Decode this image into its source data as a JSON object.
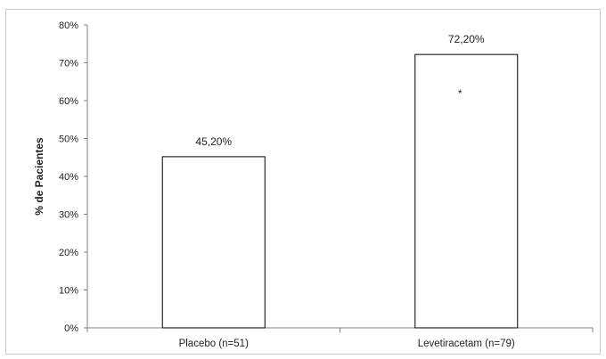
{
  "chart_data": {
    "type": "bar",
    "title": "",
    "xlabel": "",
    "ylabel": "% de Pacientes",
    "ylim": [
      0,
      80
    ],
    "yticks": [
      0,
      10,
      20,
      30,
      40,
      50,
      60,
      70,
      80
    ],
    "ytick_labels": [
      "0%",
      "10%",
      "20%",
      "30%",
      "40%",
      "50%",
      "60%",
      "70%",
      "80%"
    ],
    "categories": [
      "Placebo (n=51)",
      "Levetiracetam (n=79)"
    ],
    "values": [
      45.2,
      72.2
    ],
    "data_labels": [
      "45,20%",
      "72,20%"
    ],
    "annotations": [
      {
        "category": "Levetiracetam (n=79)",
        "text": "*"
      }
    ],
    "grid": false,
    "legend": "none",
    "bar_fill": "#ffffff",
    "bar_stroke": "#000000"
  }
}
